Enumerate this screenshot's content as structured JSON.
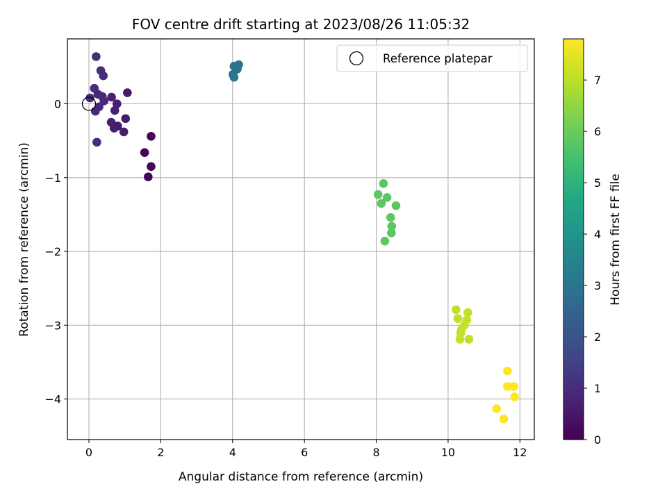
{
  "chart_data": {
    "type": "scatter",
    "title": "FOV centre drift starting at 2023/08/26 11:05:32",
    "xlabel": "Angular distance from reference (arcmin)",
    "ylabel": "Rotation from reference (arcmin)",
    "xlim": [
      -0.6,
      12.4
    ],
    "ylim": [
      -4.55,
      0.88
    ],
    "xticks": [
      0,
      2,
      4,
      6,
      8,
      10,
      12
    ],
    "yticks": [
      0,
      -1,
      -2,
      -3,
      -4
    ],
    "grid": true,
    "legend": {
      "placement": "top-right",
      "entries": [
        "Reference platepar"
      ]
    },
    "reference_point": {
      "x": 0,
      "y": 0,
      "label": "Reference platepar"
    },
    "colorbar": {
      "label": "Hours from first FF file",
      "colormap": "viridis",
      "range": [
        0,
        7.8
      ],
      "ticks": [
        0,
        1,
        2,
        3,
        4,
        5,
        6,
        7
      ]
    },
    "points": [
      {
        "x": 0.03,
        "y": 0.08,
        "c": 1.0
      },
      {
        "x": 0.15,
        "y": 0.21,
        "c": 1.0
      },
      {
        "x": 0.2,
        "y": 0.64,
        "c": 1.0
      },
      {
        "x": 0.25,
        "y": 0.13,
        "c": 0.9
      },
      {
        "x": 0.33,
        "y": 0.45,
        "c": 1.0
      },
      {
        "x": 0.4,
        "y": 0.38,
        "c": 1.0
      },
      {
        "x": 0.37,
        "y": 0.1,
        "c": 0.9
      },
      {
        "x": 0.42,
        "y": 0.04,
        "c": 0.9
      },
      {
        "x": 0.28,
        "y": -0.04,
        "c": 0.9
      },
      {
        "x": 0.18,
        "y": -0.1,
        "c": 0.9
      },
      {
        "x": 0.22,
        "y": -0.52,
        "c": 1.0
      },
      {
        "x": 0.63,
        "y": 0.09,
        "c": 0.7
      },
      {
        "x": 0.78,
        "y": 0.0,
        "c": 0.7
      },
      {
        "x": 0.72,
        "y": -0.09,
        "c": 0.7
      },
      {
        "x": 0.62,
        "y": -0.25,
        "c": 0.7
      },
      {
        "x": 0.7,
        "y": -0.33,
        "c": 0.7
      },
      {
        "x": 0.8,
        "y": -0.3,
        "c": 0.6
      },
      {
        "x": 0.97,
        "y": -0.38,
        "c": 0.6
      },
      {
        "x": 1.02,
        "y": -0.2,
        "c": 0.6
      },
      {
        "x": 1.07,
        "y": 0.15,
        "c": 0.6
      },
      {
        "x": 1.73,
        "y": -0.44,
        "c": 0.1
      },
      {
        "x": 1.55,
        "y": -0.66,
        "c": 0.1
      },
      {
        "x": 1.73,
        "y": -0.85,
        "c": 0.1
      },
      {
        "x": 1.65,
        "y": -0.99,
        "c": 0.1
      },
      {
        "x": 4.04,
        "y": 0.51,
        "c": 3.0
      },
      {
        "x": 4.17,
        "y": 0.53,
        "c": 3.0
      },
      {
        "x": 4.13,
        "y": 0.47,
        "c": 3.0
      },
      {
        "x": 4.01,
        "y": 0.4,
        "c": 3.0
      },
      {
        "x": 4.04,
        "y": 0.36,
        "c": 3.0
      },
      {
        "x": 8.2,
        "y": -1.08,
        "c": 5.8
      },
      {
        "x": 8.05,
        "y": -1.23,
        "c": 5.8
      },
      {
        "x": 8.3,
        "y": -1.27,
        "c": 5.8
      },
      {
        "x": 8.14,
        "y": -1.35,
        "c": 5.8
      },
      {
        "x": 8.55,
        "y": -1.38,
        "c": 5.8
      },
      {
        "x": 8.4,
        "y": -1.54,
        "c": 5.8
      },
      {
        "x": 8.43,
        "y": -1.66,
        "c": 5.8
      },
      {
        "x": 8.42,
        "y": -1.75,
        "c": 5.8
      },
      {
        "x": 8.24,
        "y": -1.86,
        "c": 5.8
      },
      {
        "x": 10.22,
        "y": -2.79,
        "c": 7.1
      },
      {
        "x": 10.55,
        "y": -2.83,
        "c": 7.1
      },
      {
        "x": 10.27,
        "y": -2.91,
        "c": 7.1
      },
      {
        "x": 10.52,
        "y": -2.93,
        "c": 7.1
      },
      {
        "x": 10.45,
        "y": -3.0,
        "c": 7.2
      },
      {
        "x": 10.37,
        "y": -3.06,
        "c": 7.1
      },
      {
        "x": 10.35,
        "y": -3.11,
        "c": 7.1
      },
      {
        "x": 10.33,
        "y": -3.19,
        "c": 7.1
      },
      {
        "x": 10.58,
        "y": -3.19,
        "c": 7.1
      },
      {
        "x": 11.65,
        "y": -3.62,
        "c": 7.8
      },
      {
        "x": 11.65,
        "y": -3.83,
        "c": 7.8
      },
      {
        "x": 11.83,
        "y": -3.83,
        "c": 7.8
      },
      {
        "x": 11.85,
        "y": -3.97,
        "c": 7.8
      },
      {
        "x": 11.35,
        "y": -4.13,
        "c": 7.8
      },
      {
        "x": 11.55,
        "y": -4.27,
        "c": 7.8
      }
    ]
  }
}
